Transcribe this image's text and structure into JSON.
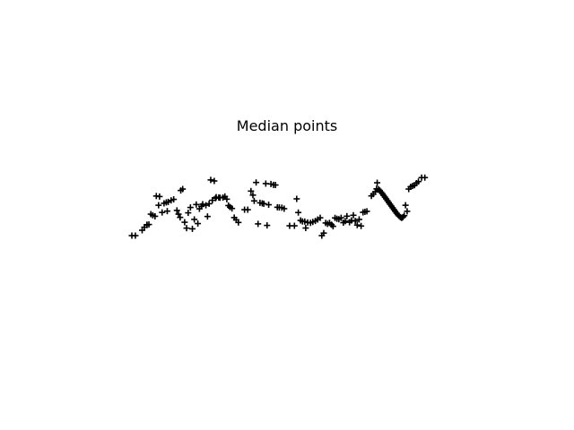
{
  "chart_data": {
    "type": "scatter",
    "title": "Median points",
    "xlabel": "",
    "ylabel": "",
    "grid": false,
    "axes_visible": false,
    "xlim": [
      0,
      1
    ],
    "ylim": [
      0,
      1
    ],
    "marker": "plus",
    "color": "#000000",
    "points": [
      [
        0.0,
        0.23
      ],
      [
        0.011,
        0.23
      ],
      [
        0.032,
        0.283
      ],
      [
        0.039,
        0.313
      ],
      [
        0.047,
        0.334
      ],
      [
        0.047,
        0.338
      ],
      [
        0.053,
        0.34
      ],
      [
        0.059,
        0.442
      ],
      [
        0.065,
        0.431
      ],
      [
        0.072,
        0.421
      ],
      [
        0.076,
        0.621
      ],
      [
        0.086,
        0.616
      ],
      [
        0.083,
        0.53
      ],
      [
        0.1,
        0.549
      ],
      [
        0.107,
        0.558
      ],
      [
        0.113,
        0.563
      ],
      [
        0.122,
        0.578
      ],
      [
        0.13,
        0.588
      ],
      [
        0.094,
        0.459
      ],
      [
        0.11,
        0.472
      ],
      [
        0.14,
        0.479
      ],
      [
        0.145,
        0.442
      ],
      [
        0.15,
        0.41
      ],
      [
        0.152,
        0.676
      ],
      [
        0.158,
        0.69
      ],
      [
        0.164,
        0.362
      ],
      [
        0.17,
        0.304
      ],
      [
        0.175,
        0.455
      ],
      [
        0.182,
        0.508
      ],
      [
        0.188,
        0.297
      ],
      [
        0.194,
        0.39
      ],
      [
        0.2,
        0.537
      ],
      [
        0.205,
        0.349
      ],
      [
        0.21,
        0.495
      ],
      [
        0.216,
        0.52
      ],
      [
        0.22,
        0.54
      ],
      [
        0.23,
        0.53
      ],
      [
        0.235,
        0.419
      ],
      [
        0.24,
        0.545
      ],
      [
        0.245,
        0.78
      ],
      [
        0.25,
        0.579
      ],
      [
        0.256,
        0.77
      ],
      [
        0.26,
        0.6
      ],
      [
        0.262,
        0.61
      ],
      [
        0.27,
        0.606
      ],
      [
        0.274,
        0.604
      ],
      [
        0.283,
        0.606
      ],
      [
        0.289,
        0.617
      ],
      [
        0.295,
        0.59
      ],
      [
        0.3,
        0.527
      ],
      [
        0.305,
        0.512
      ],
      [
        0.311,
        0.498
      ],
      [
        0.318,
        0.408
      ],
      [
        0.324,
        0.386
      ],
      [
        0.331,
        0.36
      ],
      [
        0.35,
        0.486
      ],
      [
        0.36,
        0.486
      ],
      [
        0.37,
        0.67
      ],
      [
        0.376,
        0.63
      ],
      [
        0.38,
        0.573
      ],
      [
        0.386,
        0.755
      ],
      [
        0.392,
        0.346
      ],
      [
        0.398,
        0.554
      ],
      [
        0.405,
        0.549
      ],
      [
        0.41,
        0.545
      ],
      [
        0.416,
        0.744
      ],
      [
        0.42,
        0.331
      ],
      [
        0.425,
        0.535
      ],
      [
        0.432,
        0.74
      ],
      [
        0.44,
        0.731
      ],
      [
        0.446,
        0.73
      ],
      [
        0.452,
        0.51
      ],
      [
        0.458,
        0.508
      ],
      [
        0.466,
        0.506
      ],
      [
        0.473,
        0.496
      ],
      [
        0.49,
        0.327
      ],
      [
        0.505,
        0.327
      ],
      [
        0.512,
        0.593
      ],
      [
        0.517,
        0.458
      ],
      [
        0.524,
        0.38
      ],
      [
        0.53,
        0.37
      ],
      [
        0.537,
        0.369
      ],
      [
        0.54,
        0.305
      ],
      [
        0.546,
        0.36
      ],
      [
        0.555,
        0.356
      ],
      [
        0.562,
        0.365
      ],
      [
        0.57,
        0.375
      ],
      [
        0.577,
        0.389
      ],
      [
        0.585,
        0.406
      ],
      [
        0.59,
        0.23
      ],
      [
        0.596,
        0.255
      ],
      [
        0.602,
        0.355
      ],
      [
        0.608,
        0.346
      ],
      [
        0.614,
        0.356
      ],
      [
        0.62,
        0.338
      ],
      [
        0.625,
        0.322
      ],
      [
        0.631,
        0.405
      ],
      [
        0.637,
        0.396
      ],
      [
        0.643,
        0.392
      ],
      [
        0.65,
        0.406
      ],
      [
        0.657,
        0.358
      ],
      [
        0.663,
        0.373
      ],
      [
        0.668,
        0.422
      ],
      [
        0.676,
        0.362
      ],
      [
        0.682,
        0.38
      ],
      [
        0.688,
        0.431
      ],
      [
        0.694,
        0.374
      ],
      [
        0.7,
        0.334
      ],
      [
        0.706,
        0.39
      ],
      [
        0.712,
        0.325
      ],
      [
        0.718,
        0.46
      ],
      [
        0.724,
        0.465
      ],
      [
        0.73,
        0.47
      ],
      [
        0.744,
        0.622
      ],
      [
        0.75,
        0.64
      ],
      [
        0.756,
        0.662
      ],
      [
        0.76,
        0.692
      ],
      [
        0.762,
        0.752
      ],
      [
        0.766,
        0.688
      ],
      [
        0.77,
        0.676
      ],
      [
        0.774,
        0.66
      ],
      [
        0.778,
        0.645
      ],
      [
        0.782,
        0.627
      ],
      [
        0.786,
        0.61
      ],
      [
        0.79,
        0.593
      ],
      [
        0.794,
        0.575
      ],
      [
        0.798,
        0.557
      ],
      [
        0.802,
        0.54
      ],
      [
        0.806,
        0.522
      ],
      [
        0.81,
        0.505
      ],
      [
        0.814,
        0.487
      ],
      [
        0.818,
        0.47
      ],
      [
        0.822,
        0.452
      ],
      [
        0.826,
        0.437
      ],
      [
        0.83,
        0.424
      ],
      [
        0.834,
        0.412
      ],
      [
        0.838,
        0.405
      ],
      [
        0.842,
        0.413
      ],
      [
        0.846,
        0.427
      ],
      [
        0.85,
        0.53
      ],
      [
        0.855,
        0.47
      ],
      [
        0.86,
        0.69
      ],
      [
        0.866,
        0.712
      ],
      [
        0.872,
        0.721
      ],
      [
        0.878,
        0.728
      ],
      [
        0.884,
        0.748
      ],
      [
        0.89,
        0.764
      ],
      [
        0.9,
        0.803
      ],
      [
        0.91,
        0.803
      ]
    ]
  }
}
